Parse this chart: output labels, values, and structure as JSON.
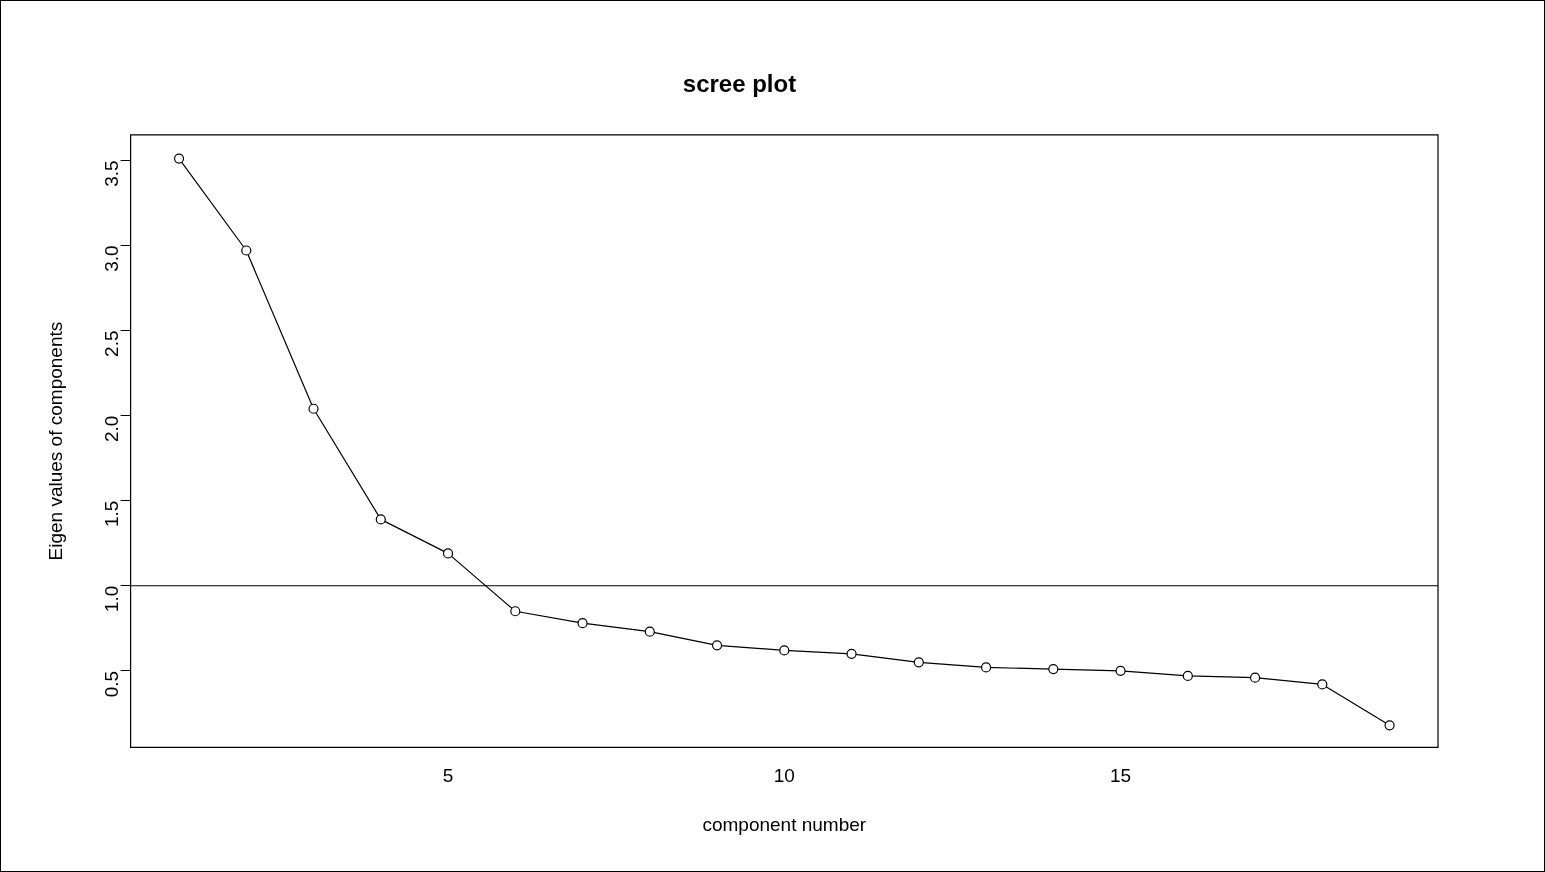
{
  "chart_data": {
    "type": "line",
    "title": "scree plot",
    "xlabel": "component number",
    "ylabel": "Eigen values of components",
    "x": [
      1,
      2,
      3,
      4,
      5,
      6,
      7,
      8,
      9,
      10,
      11,
      12,
      13,
      14,
      15,
      16,
      17,
      18,
      19
    ],
    "series": [
      {
        "color": "#000000",
        "values": [
          3.51,
          2.97,
          2.04,
          1.39,
          1.19,
          0.85,
          0.78,
          0.73,
          0.65,
          0.62,
          0.6,
          0.55,
          0.52,
          0.51,
          0.5,
          0.47,
          0.46,
          0.42,
          0.18
        ]
      }
    ],
    "xlim": [
      0.28,
      19.72
    ],
    "xticks": [
      5,
      10,
      15
    ],
    "ylim": [
      0.05,
      3.65
    ],
    "yticks": [
      0.5,
      {
        "value": 1,
        "label": "1.0"
      },
      1.5,
      {
        "value": 2,
        "label": "2.0"
      },
      2.5,
      {
        "value": 3,
        "label": "3.0"
      },
      3.5
    ],
    "ref_lines": [
      {
        "axis": "y",
        "value": 1.0,
        "color": "#000000"
      }
    ],
    "marker": "circle",
    "line_style": "solid",
    "grid": false,
    "legend": false
  }
}
